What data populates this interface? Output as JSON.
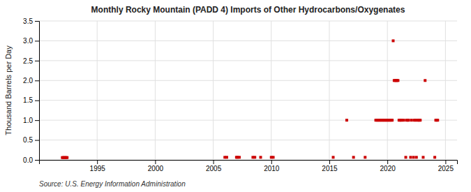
{
  "chart_data": {
    "type": "scatter",
    "title": "Monthly Rocky Mountain (PADD 4) Imports of Other Hydrocarbons/Oxygenates",
    "ylabel": "Thousand Barrels per Day",
    "source": "Source: U.S. Energy Information Administration",
    "color": "#cc0000",
    "marker": "square",
    "grid": true,
    "xlim": [
      1990,
      2026
    ],
    "ylim": [
      0,
      3.5
    ],
    "xticks": [
      1995,
      2000,
      2005,
      2010,
      2015,
      2020,
      2025
    ],
    "yticks": [
      {
        "value": 0.0,
        "label": "0.0"
      },
      0.5,
      {
        "value": 1.0,
        "label": "1.0"
      },
      1.5,
      {
        "value": 2.0,
        "label": "2.0"
      },
      2.5,
      {
        "value": 3.0,
        "label": "3.0"
      },
      3.5
    ],
    "x": [
      1992.0,
      1992.083,
      1992.167,
      1992.25,
      1992.333,
      1992.417,
      2006.0,
      2006.167,
      2007.0,
      2007.083,
      2007.25,
      2008.417,
      2008.583,
      2009.083,
      2010.0,
      2010.167,
      2015.333,
      2016.5,
      2017.083,
      2018.083,
      2019.0,
      2019.083,
      2019.167,
      2019.25,
      2019.333,
      2019.417,
      2019.5,
      2019.583,
      2019.667,
      2019.75,
      2019.833,
      2019.917,
      2020.0,
      2020.083,
      2020.167,
      2020.25,
      2020.333,
      2020.417,
      2020.5,
      2020.583,
      2020.667,
      2020.75,
      2020.833,
      2020.917,
      2021.0,
      2021.083,
      2021.167,
      2021.25,
      2021.417,
      2021.583,
      2021.667,
      2021.75,
      2021.833,
      2022.0,
      2022.083,
      2022.25,
      2022.333,
      2022.417,
      2022.5,
      2022.583,
      2022.667,
      2022.75,
      2022.833,
      2023.083,
      2023.25,
      2024.083,
      2024.167,
      2024.25,
      2024.333
    ],
    "values": [
      0.058,
      0.058,
      0.058,
      0.058,
      0.058,
      0.058,
      0.065,
      0.065,
      0.065,
      0.065,
      0.065,
      0.065,
      0.065,
      0.065,
      0.065,
      0.065,
      0.065,
      1.0,
      0.065,
      0.065,
      1.0,
      1.0,
      1.0,
      1.0,
      1.0,
      1.0,
      1.0,
      1.0,
      1.0,
      1.0,
      1.0,
      1.0,
      1.0,
      1.0,
      1.0,
      1.0,
      1.0,
      1.0,
      3.0,
      2.0,
      2.0,
      2.0,
      2.0,
      2.0,
      1.0,
      1.0,
      1.0,
      1.0,
      1.0,
      0.065,
      1.0,
      1.0,
      1.0,
      0.065,
      1.0,
      0.065,
      1.0,
      1.0,
      0.065,
      1.0,
      1.0,
      1.0,
      1.0,
      0.065,
      2.0,
      0.065,
      1.0,
      1.0,
      1.0
    ]
  }
}
